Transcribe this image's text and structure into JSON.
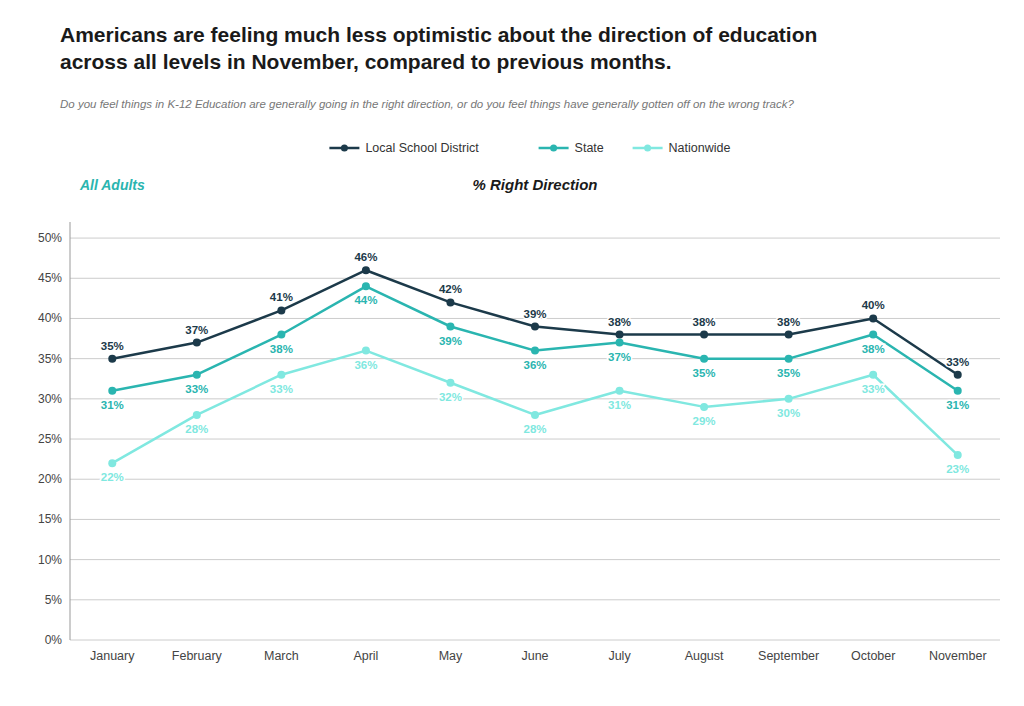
{
  "chart_data": {
    "type": "line",
    "title": "Americans are feeling much less optimistic about the direction of education\nacross all levels in November, compared to previous months.",
    "subtitle": "Do you feel things in K-12 Education are generally going in the right direction, or do you feel things have generally gotten off on the wrong track?",
    "annotations": [
      "All Adults"
    ],
    "ylabel": "% Right Direction",
    "categories": [
      "January",
      "February",
      "March",
      "April",
      "May",
      "June",
      "July",
      "August",
      "September",
      "October",
      "November"
    ],
    "series": [
      {
        "name": "Local School District",
        "color": "#1c3a4a",
        "marker": "circle",
        "values": [
          35,
          37,
          41,
          46,
          42,
          39,
          38,
          38,
          38,
          40,
          33
        ],
        "value_labels": [
          "35%",
          "37%",
          "41%",
          "46%",
          "42%",
          "39%",
          "38%",
          "38%",
          "38%",
          "40%",
          "33%"
        ]
      },
      {
        "name": "State",
        "color": "#2ab5b0",
        "marker": "circle",
        "values": [
          31,
          33,
          38,
          44,
          39,
          36,
          37,
          35,
          35,
          38,
          31
        ],
        "value_labels": [
          "31%",
          "33%",
          "38%",
          "44%",
          "39%",
          "36%",
          "37%",
          "35%",
          "35%",
          "38%",
          "31%"
        ]
      },
      {
        "name": "Nationwide",
        "color": "#80e8e0",
        "marker": "circle",
        "values": [
          22,
          28,
          33,
          36,
          32,
          28,
          31,
          29,
          30,
          33,
          23
        ],
        "value_labels": [
          "22%",
          "28%",
          "33%",
          "36%",
          "32%",
          "28%",
          "31%",
          "29%",
          "30%",
          "33%",
          "23%"
        ]
      }
    ],
    "ylim": [
      0,
      52
    ],
    "yticks": [
      {
        "value": 0,
        "label": "0%"
      },
      {
        "value": 5,
        "label": "5%"
      },
      {
        "value": 10,
        "label": "10%"
      },
      {
        "value": 15,
        "label": "15%"
      },
      {
        "value": 20,
        "label": "20%"
      },
      {
        "value": 25,
        "label": "25%"
      },
      {
        "value": 30,
        "label": "30%"
      },
      {
        "value": 35,
        "label": "35%"
      },
      {
        "value": 40,
        "label": "40%"
      },
      {
        "value": 45,
        "label": "45%"
      },
      {
        "value": 50,
        "label": "50%"
      }
    ],
    "grid": true,
    "legend": "top",
    "data_labels": true
  }
}
